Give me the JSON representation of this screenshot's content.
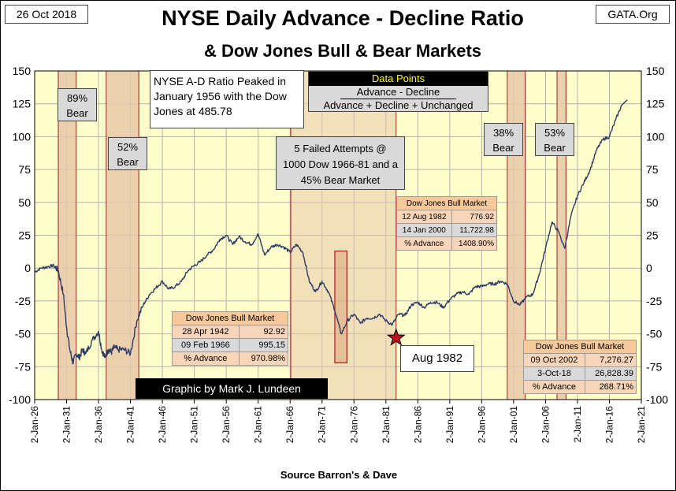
{
  "header": {
    "date_label": "26 Oct 2018",
    "site_label": "GATA.Org",
    "title_line1": "NYSE Daily Advance - Decline Ratio",
    "title_line2": "& Dow Jones Bull & Bear Markets"
  },
  "chart_data": {
    "type": "line",
    "title": "NYSE Daily Advance - Decline Ratio & Dow Jones Bull & Bear Markets",
    "xlabel": "Source Barron's & Dave",
    "ylabel": "",
    "ylim": [
      -100,
      150
    ],
    "xlim": [
      1926,
      2021
    ],
    "yticks": [
      -100,
      -75,
      -50,
      -25,
      0,
      25,
      50,
      75,
      100,
      125,
      150
    ],
    "xtick_labels": [
      "2-Jan-26",
      "2-Jan-31",
      "2-Jan-36",
      "2-Jan-41",
      "2-Jan-46",
      "2-Jan-51",
      "2-Jan-56",
      "2-Jan-61",
      "2-Jan-66",
      "2-Jan-71",
      "2-Jan-76",
      "2-Jan-81",
      "2-Jan-86",
      "2-Jan-91",
      "2-Jan-96",
      "2-Jan-01",
      "2-Jan-06",
      "2-Jan-11",
      "2-Jan-16",
      "2-Jan-21"
    ],
    "xtick_years": [
      1926,
      1931,
      1936,
      1941,
      1946,
      1951,
      1956,
      1961,
      1966,
      1971,
      1976,
      1981,
      1986,
      1991,
      1996,
      2001,
      2006,
      2011,
      2016,
      2021
    ],
    "series": [
      {
        "name": "NYSE A-D Ratio",
        "color": "#2e3a66",
        "x": [
          1926,
          1927,
          1928,
          1929,
          1929.7,
          1930.5,
          1931,
          1931.5,
          1932,
          1932.5,
          1933,
          1933.5,
          1934,
          1935,
          1936,
          1936.5,
          1937,
          1937.5,
          1938,
          1938.5,
          1939,
          1940,
          1941,
          1942,
          1943,
          1944,
          1945,
          1946,
          1947,
          1948,
          1949,
          1950,
          1951,
          1952,
          1953,
          1954,
          1955,
          1956,
          1957,
          1958,
          1959,
          1960,
          1961,
          1962,
          1963,
          1964,
          1965,
          1966,
          1967,
          1968,
          1969,
          1970,
          1971,
          1972,
          1973,
          1974,
          1975,
          1976,
          1977,
          1978,
          1979,
          1980,
          1981,
          1982,
          1983,
          1984,
          1985,
          1986,
          1987,
          1988,
          1989,
          1990,
          1991,
          1992,
          1993,
          1994,
          1995,
          1996,
          1997,
          1998,
          1999,
          2000,
          2001,
          2002,
          2003,
          2004,
          2005,
          2006,
          2007,
          2008,
          2009,
          2010,
          2011,
          2012,
          2013,
          2014,
          2015,
          2016,
          2017,
          2018
        ],
        "y": [
          -3,
          0,
          1,
          2,
          -2,
          -20,
          -45,
          -62,
          -72,
          -65,
          -68,
          -62,
          -65,
          -55,
          -48,
          -62,
          -68,
          -62,
          -64,
          -60,
          -62,
          -62,
          -65,
          -40,
          -28,
          -20,
          -15,
          -10,
          -16,
          -14,
          -10,
          -2,
          2,
          5,
          10,
          14,
          22,
          25,
          18,
          24,
          20,
          18,
          26,
          10,
          16,
          18,
          16,
          12,
          18,
          12,
          -10,
          -18,
          -10,
          -18,
          -32,
          -50,
          -40,
          -35,
          -42,
          -38,
          -38,
          -35,
          -40,
          -43,
          -35,
          -36,
          -28,
          -26,
          -30,
          -26,
          -26,
          -30,
          -24,
          -20,
          -18,
          -20,
          -14,
          -14,
          -12,
          -12,
          -10,
          -12,
          -25,
          -28,
          -22,
          -20,
          -5,
          15,
          35,
          28,
          15,
          40,
          55,
          65,
          75,
          90,
          98,
          100,
          113,
          125
        ],
        "y_last": 128
      }
    ],
    "bear_markets": [
      {
        "label": "89% Bear",
        "start": 1929.7,
        "end": 1932.5
      },
      {
        "label": "52% Bear",
        "start": 1937.2,
        "end": 1942.3
      },
      {
        "label": "38% Bear",
        "start": 2000.0,
        "end": 2002.8
      },
      {
        "label": "53% Bear",
        "start": 2007.8,
        "end": 2009.2
      }
    ],
    "shaded_period": {
      "label": "5 Failed Attempts @ 1000 Dow 1966-81 and a 45% Bear Market",
      "start": 1966.1,
      "end": 1982.6
    },
    "bear_1973": {
      "label": "45% Bear Market",
      "start": 1973.0,
      "end": 1974.9,
      "top": 13,
      "bottom": -72
    },
    "marker": {
      "label": "Aug 1982",
      "x": 1982.6,
      "y": -53
    }
  },
  "annotations": {
    "peak_note": "NYSE A-D Ratio Peaked in January 1956 with the Dow Jones at 485.78",
    "failed_attempts": "5 Failed Attempts @ 1000  Dow 1966-81 and a 45% Bear Market",
    "aug_1982": "Aug 1982",
    "credit": "Graphic by Mark J. Lundeen",
    "bear_89": "89% Bear",
    "bear_52": "52% Bear",
    "bear_38": "38% Bear",
    "bear_53": "53% Bear"
  },
  "data_points": {
    "title": "Data Points",
    "numerator": "Advance - Decline",
    "denominator": "Advance + Decline + Unchanged"
  },
  "bull_tables": [
    {
      "title": "Dow Jones Bull Market",
      "rows": [
        [
          "28 Apr 1942",
          "92.92"
        ],
        [
          "09 Feb 1966",
          "995.15"
        ],
        [
          "% Advance",
          "970.98%"
        ]
      ]
    },
    {
      "title": "Dow Jones Bull Market",
      "rows": [
        [
          "12 Aug 1982",
          "776.92"
        ],
        [
          "14 Jan 2000",
          "11,722.98"
        ],
        [
          "% Advance",
          "1408.90%"
        ]
      ]
    },
    {
      "title": "Dow Jones Bull Market",
      "rows": [
        [
          "09 Oct 2002",
          "7,276.27"
        ],
        [
          "3-Oct-18",
          "26,828.39"
        ],
        [
          "% Advance",
          "268.71%"
        ]
      ]
    }
  ],
  "footer": {
    "source": "Source Barron's & Dave"
  },
  "colors": {
    "plot_bg": "#ffffcc",
    "bear_fill": "#e8c8a8",
    "bear_border": "#a02020",
    "line": "#2e3a66",
    "star": "#c0101a",
    "credit_bg": "#000000",
    "credit_text": "#ffffff"
  }
}
